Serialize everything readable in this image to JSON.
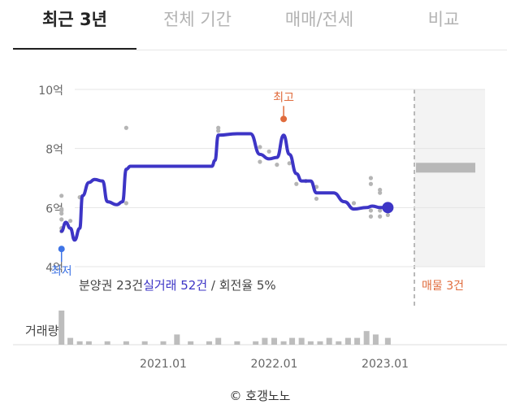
{
  "tabs": [
    {
      "label": "최근 3년",
      "active": true
    },
    {
      "label": "전체 기간",
      "active": false
    },
    {
      "label": "매매/전세",
      "active": false
    },
    {
      "label": "비교",
      "active": false
    }
  ],
  "chart_data": {
    "type": "line",
    "y_unit_label": "억",
    "ylim": [
      4,
      10
    ],
    "y_ticks": [
      {
        "value": 4,
        "label": "4억"
      },
      {
        "value": 6,
        "label": "6억"
      },
      {
        "value": 8,
        "label": "8억"
      },
      {
        "value": 10,
        "label": "10억"
      }
    ],
    "xlim": [
      "2020-01-15",
      "2023-12-31"
    ],
    "x_ticks": [
      {
        "value": "2021-01",
        "label": "2021.01"
      },
      {
        "value": "2022-01",
        "label": "2022.01"
      },
      {
        "value": "2023-01",
        "label": "2023.01"
      }
    ],
    "series": [
      {
        "color": "#3d35c6",
        "points": [
          [
            "2020-02-01",
            5.2
          ],
          [
            "2020-02-15",
            5.5
          ],
          [
            "2020-03-01",
            5.3
          ],
          [
            "2020-03-15",
            4.9
          ],
          [
            "2020-04-01",
            5.3
          ],
          [
            "2020-04-10",
            6.4
          ],
          [
            "2020-05-01",
            6.85
          ],
          [
            "2020-05-20",
            6.95
          ],
          [
            "2020-06-15",
            6.9
          ],
          [
            "2020-07-01",
            6.2
          ],
          [
            "2020-08-01",
            6.1
          ],
          [
            "2020-08-20",
            6.2
          ],
          [
            "2020-09-01",
            7.3
          ],
          [
            "2020-09-15",
            7.4
          ],
          [
            "2021-01-01",
            7.4
          ],
          [
            "2021-03-01",
            7.4
          ],
          [
            "2021-06-10",
            7.4
          ],
          [
            "2021-06-20",
            7.6
          ],
          [
            "2021-07-01",
            8.45
          ],
          [
            "2021-09-01",
            8.5
          ],
          [
            "2021-10-15",
            8.5
          ],
          [
            "2021-11-15",
            7.8
          ],
          [
            "2021-12-15",
            7.65
          ],
          [
            "2022-01-10",
            7.7
          ],
          [
            "2022-02-01",
            8.45
          ],
          [
            "2022-02-20",
            7.8
          ],
          [
            "2022-03-15",
            7.15
          ],
          [
            "2022-04-01",
            6.9
          ],
          [
            "2022-05-01",
            6.9
          ],
          [
            "2022-05-20",
            6.5
          ],
          [
            "2022-06-15",
            6.5
          ],
          [
            "2022-07-15",
            6.5
          ],
          [
            "2022-08-20",
            6.2
          ],
          [
            "2022-09-20",
            5.95
          ],
          [
            "2022-11-01",
            6.0
          ],
          [
            "2022-11-20",
            6.05
          ],
          [
            "2022-12-15",
            6.0
          ],
          [
            "2023-01-10",
            6.0
          ]
        ]
      }
    ],
    "scatter": [
      [
        "2020-02-01",
        6.4
      ],
      [
        "2020-02-01",
        5.95
      ],
      [
        "2020-02-01",
        5.9
      ],
      [
        "2020-02-01",
        5.8
      ],
      [
        "2020-02-01",
        5.6
      ],
      [
        "2020-02-01",
        5.3
      ],
      [
        "2020-02-01",
        5.2
      ],
      [
        "2020-03-01",
        5.55
      ],
      [
        "2020-04-01",
        6.35
      ],
      [
        "2020-09-01",
        8.7
      ],
      [
        "2020-09-01",
        6.15
      ],
      [
        "2021-07-01",
        8.6
      ],
      [
        "2021-07-01",
        8.7
      ],
      [
        "2021-11-15",
        8.05
      ],
      [
        "2021-11-15",
        7.55
      ],
      [
        "2021-12-15",
        7.9
      ],
      [
        "2022-01-10",
        7.45
      ],
      [
        "2022-02-20",
        7.5
      ],
      [
        "2022-03-15",
        6.8
      ],
      [
        "2022-04-15",
        6.9
      ],
      [
        "2022-05-20",
        6.7
      ],
      [
        "2022-05-20",
        6.3
      ],
      [
        "2022-09-20",
        6.15
      ],
      [
        "2022-11-15",
        7.0
      ],
      [
        "2022-11-15",
        6.8
      ],
      [
        "2022-11-15",
        5.9
      ],
      [
        "2022-11-15",
        5.7
      ],
      [
        "2022-12-15",
        6.6
      ],
      [
        "2022-12-15",
        6.5
      ],
      [
        "2022-12-15",
        5.9
      ],
      [
        "2022-12-15",
        5.7
      ],
      [
        "2023-01-10",
        5.75
      ]
    ],
    "high": {
      "x": "2022-02-01",
      "y": 9.0,
      "label": "최고",
      "color": "#e06b3c"
    },
    "low": {
      "x": "2020-02-01",
      "y": 4.6,
      "label": "최저",
      "color": "#3f74e6"
    },
    "last": {
      "x": "2023-01-10",
      "y": 6.0,
      "color": "#3d35c6"
    },
    "listing": {
      "label": "매물 3건",
      "y": 7.35,
      "color": "#e06b3c"
    },
    "summary": {
      "presale": "분양권 23건",
      "actual": "실거래 52건",
      "turnover": "/ 회전율 5%",
      "actual_color": "#3d35c6"
    },
    "volume": {
      "label": "거래량",
      "bars": [
        [
          "2020-02-01",
          10
        ],
        [
          "2020-03-01",
          2
        ],
        [
          "2020-04-01",
          1
        ],
        [
          "2020-05-01",
          1
        ],
        [
          "2020-07-01",
          1
        ],
        [
          "2020-09-01",
          1
        ],
        [
          "2020-11-01",
          1
        ],
        [
          "2021-01-01",
          1
        ],
        [
          "2021-02-15",
          3
        ],
        [
          "2021-04-01",
          1
        ],
        [
          "2021-06-01",
          1
        ],
        [
          "2021-07-01",
          2
        ],
        [
          "2021-09-01",
          1
        ],
        [
          "2021-11-01",
          1
        ],
        [
          "2021-12-01",
          2
        ],
        [
          "2022-01-01",
          2
        ],
        [
          "2022-02-01",
          1
        ],
        [
          "2022-03-01",
          2
        ],
        [
          "2022-04-01",
          2
        ],
        [
          "2022-05-01",
          1
        ],
        [
          "2022-06-01",
          1
        ],
        [
          "2022-07-01",
          2
        ],
        [
          "2022-08-01",
          1
        ],
        [
          "2022-09-01",
          2
        ],
        [
          "2022-10-01",
          2
        ],
        [
          "2022-11-01",
          4
        ],
        [
          "2022-12-01",
          3
        ],
        [
          "2023-01-10",
          2
        ]
      ]
    }
  },
  "footer": {
    "copyright": "© 호갱노노"
  }
}
